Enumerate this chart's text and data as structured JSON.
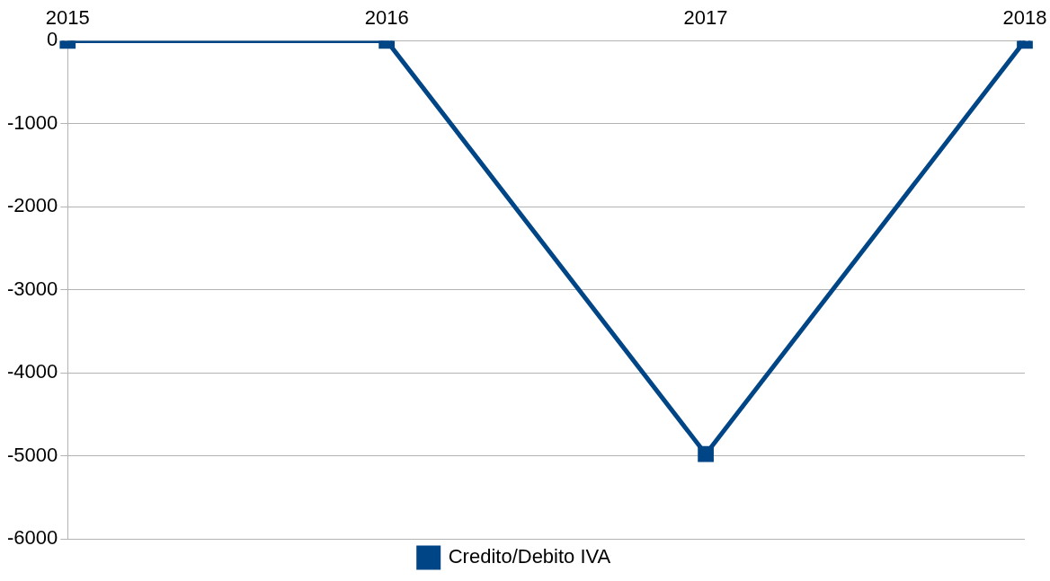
{
  "chart_data": {
    "type": "line",
    "categories": [
      "2015",
      "2016",
      "2017",
      "2018"
    ],
    "series": [
      {
        "name": "Credito/Debito IVA",
        "color": "#004586",
        "values": [
          0,
          0,
          -4980,
          0
        ]
      }
    ],
    "ylim": [
      -6000,
      0
    ],
    "yticks": [
      -6000,
      -5000,
      -4000,
      -3000,
      -2000,
      -1000,
      0
    ],
    "grid": "y",
    "legend": "bottom",
    "marker": "square",
    "line_style": "solid"
  }
}
